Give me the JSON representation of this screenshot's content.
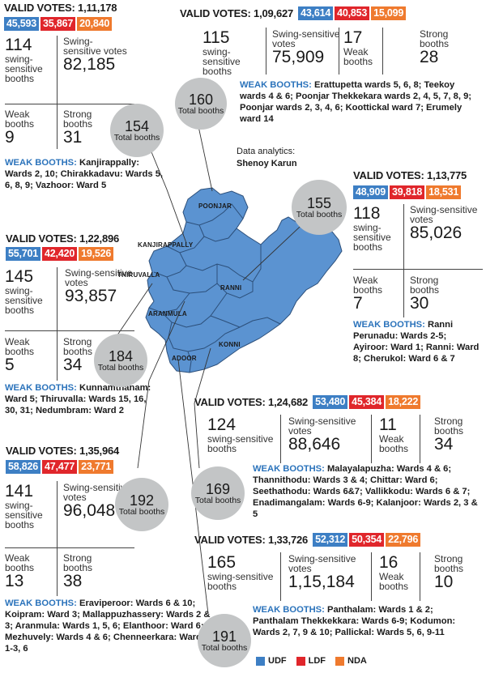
{
  "legend": {
    "items": [
      {
        "label": "UDF",
        "color": "#3d7fc4"
      },
      {
        "label": "LDF",
        "color": "#e0262b"
      },
      {
        "label": "NDA",
        "color": "#ef7a2e"
      }
    ]
  },
  "credit": {
    "line1": "Data analytics:",
    "line2": "Shenoy Karun"
  },
  "colors": {
    "map_fill": "#5b93d1",
    "bubble": "#c3c5c6",
    "udf": "#3d7fc4",
    "ldf": "#e0262b",
    "nda": "#ef7a2e",
    "heading": "#2b73bb"
  },
  "regions": [
    "POONJAR",
    "KANJIRAPPALLY",
    "THIRUVALLA",
    "RANNI",
    "ARANMULA",
    "KONNI",
    "ADOOR"
  ],
  "c1": {
    "valid_votes": "VALID VOTES: 1,11,178",
    "udf": "45,593",
    "ldf": "35,867",
    "nda": "20,840",
    "swing_booths": "114",
    "swing_booths_label": "swing-sensitive booths",
    "swing_votes_label": "Swing-sensitive votes",
    "swing_votes": "82,185",
    "weak_label": "Weak booths",
    "weak": "9",
    "strong_label": "Strong booths",
    "strong": "31",
    "bubble_n": "154",
    "bubble_t": "Total booths",
    "weak_head": "WEAK BOOTHS:",
    "weak_text": " Kanjirappally: Wards 2, 10; Chirakkadavu: Wards 5, 6, 8, 9; Vazhoor: Ward 5"
  },
  "c2": {
    "valid_votes": "VALID VOTES: 1,09,627",
    "udf": "43,614",
    "ldf": "40,853",
    "nda": "15,099",
    "swing_booths": "115",
    "swing_booths_label": "swing-sensitive booths",
    "swing_votes_label": "Swing-sensitive votes",
    "swing_votes": "75,909",
    "weak": "17",
    "weak_label": "Weak booths",
    "strong_label": "Strong booths",
    "strong": "28",
    "bubble_n": "160",
    "bubble_t": "Total booths",
    "weak_head": "WEAK BOOTHS:",
    "weak_text": " Erattupetta wards 5, 6, 8; Teekoy wards 4 & 6; Poonjar Thekkekara wards 2, 4, 5, 7, 8, 9; Poonjar wards 2, 3, 4, 6; Koottickal ward 7; Erumely ward 14"
  },
  "c3": {
    "valid_votes": "VALID VOTES: 1,13,775",
    "udf": "48,909",
    "ldf": "39,818",
    "nda": "18,531",
    "swing_booths": "118",
    "swing_booths_label": "swing-sensitive booths",
    "swing_votes_label": "Swing-sensitive votes",
    "swing_votes": "85,026",
    "weak_label": "Weak booths",
    "weak": "7",
    "strong_label": "Strong booths",
    "strong": "30",
    "bubble_n": "155",
    "bubble_t": "Total booths",
    "weak_head": "WEAK BOOTHS:",
    "weak_text": " Ranni Perunadu: Wards 2-5; Ayiroor: Ward 1; Ranni: Ward 8; Cherukol: Ward 6 & 7"
  },
  "c4": {
    "valid_votes": "VALID VOTES: 1,22,896",
    "udf": "55,701",
    "ldf": "42,420",
    "nda": "19,526",
    "swing_booths": "145",
    "swing_booths_label": "swing-sensitive booths",
    "swing_votes_label": "Swing-sensitive votes",
    "swing_votes": "93,857",
    "weak_label": "Weak booths",
    "weak": "5",
    "strong_label": "Strong booths",
    "strong": "34",
    "bubble_n": "184",
    "bubble_t": "Total booths",
    "weak_head": "WEAK BOOTHS:",
    "weak_text": " Kunnamthanam: Ward 5; Thiruvalla: Wards 15, 16, 30, 31; Nedumbram: Ward 2"
  },
  "c5": {
    "valid_votes": "VALID VOTES: 1,24,682",
    "udf": "53,480",
    "ldf": "45,384",
    "nda": "18,222",
    "swing_booths": "124",
    "swing_booths_label": "swing-sensitive booths",
    "swing_votes_label": "Swing-sensitive votes",
    "swing_votes": "88,646",
    "weak": "11",
    "weak_label": "Weak booths",
    "strong_label": "Strong booths",
    "strong": "34",
    "bubble_n": "169",
    "bubble_t": "Total booths",
    "weak_head": "WEAK BOOTHS:",
    "weak_text": " Malayalapuzha: Wards 4 & 6; Thannithodu: Wards 3 & 4; Chittar: Ward 6; Seethathodu: Wards 6&7; Vallikkodu: Wards 6 & 7; Enadimangalam: Wards 6-9; Kalanjoor: Wards 2, 3 & 5"
  },
  "c6": {
    "valid_votes": "VALID VOTES: 1,35,964",
    "udf": "58,826",
    "ldf": "47,477",
    "nda": "23,771",
    "swing_booths": "141",
    "swing_booths_label": "swing-sensitive booths",
    "swing_votes_label": "Swing-sensitive votes",
    "swing_votes": "96,048",
    "weak_label": "Weak booths",
    "weak": "13",
    "strong_label": "Strong booths",
    "strong": "38",
    "bubble_n": "192",
    "bubble_t": "Total booths",
    "weak_head": "WEAK BOOTHS:",
    "weak_text": " Eraviperoor: Wards 6 & 10; Koipram: Ward 3; Mallappuzhassery: Wards 2 & 3; Aranmula: Wards 1, 5, 6; Elanthoor: Ward 6; Mezhuvely: Wards 4 & 6; Chenneerkara: Wards 1-3, 6"
  },
  "c7": {
    "valid_votes": "VALID VOTES: 1,33,726",
    "udf": "52,312",
    "ldf": "50,354",
    "nda": "22,796",
    "swing_booths": "165",
    "swing_booths_label": "swing-sensitive booths",
    "swing_votes_label": "Swing-sensitive votes",
    "swing_votes": "1,15,184",
    "weak": "16",
    "weak_label": "Weak booths",
    "strong_label": "Strong booths",
    "strong": "10",
    "bubble_n": "191",
    "bubble_t": "Total booths",
    "weak_head": "WEAK BOOTHS:",
    "weak_text": " Panthalam: Wards 1 & 2; Panthalam Thekkekkara: Wards 6-9; Kodumon: Wards 2, 7, 9 & 10; Pallickal: Wards 5, 6, 9-11"
  }
}
